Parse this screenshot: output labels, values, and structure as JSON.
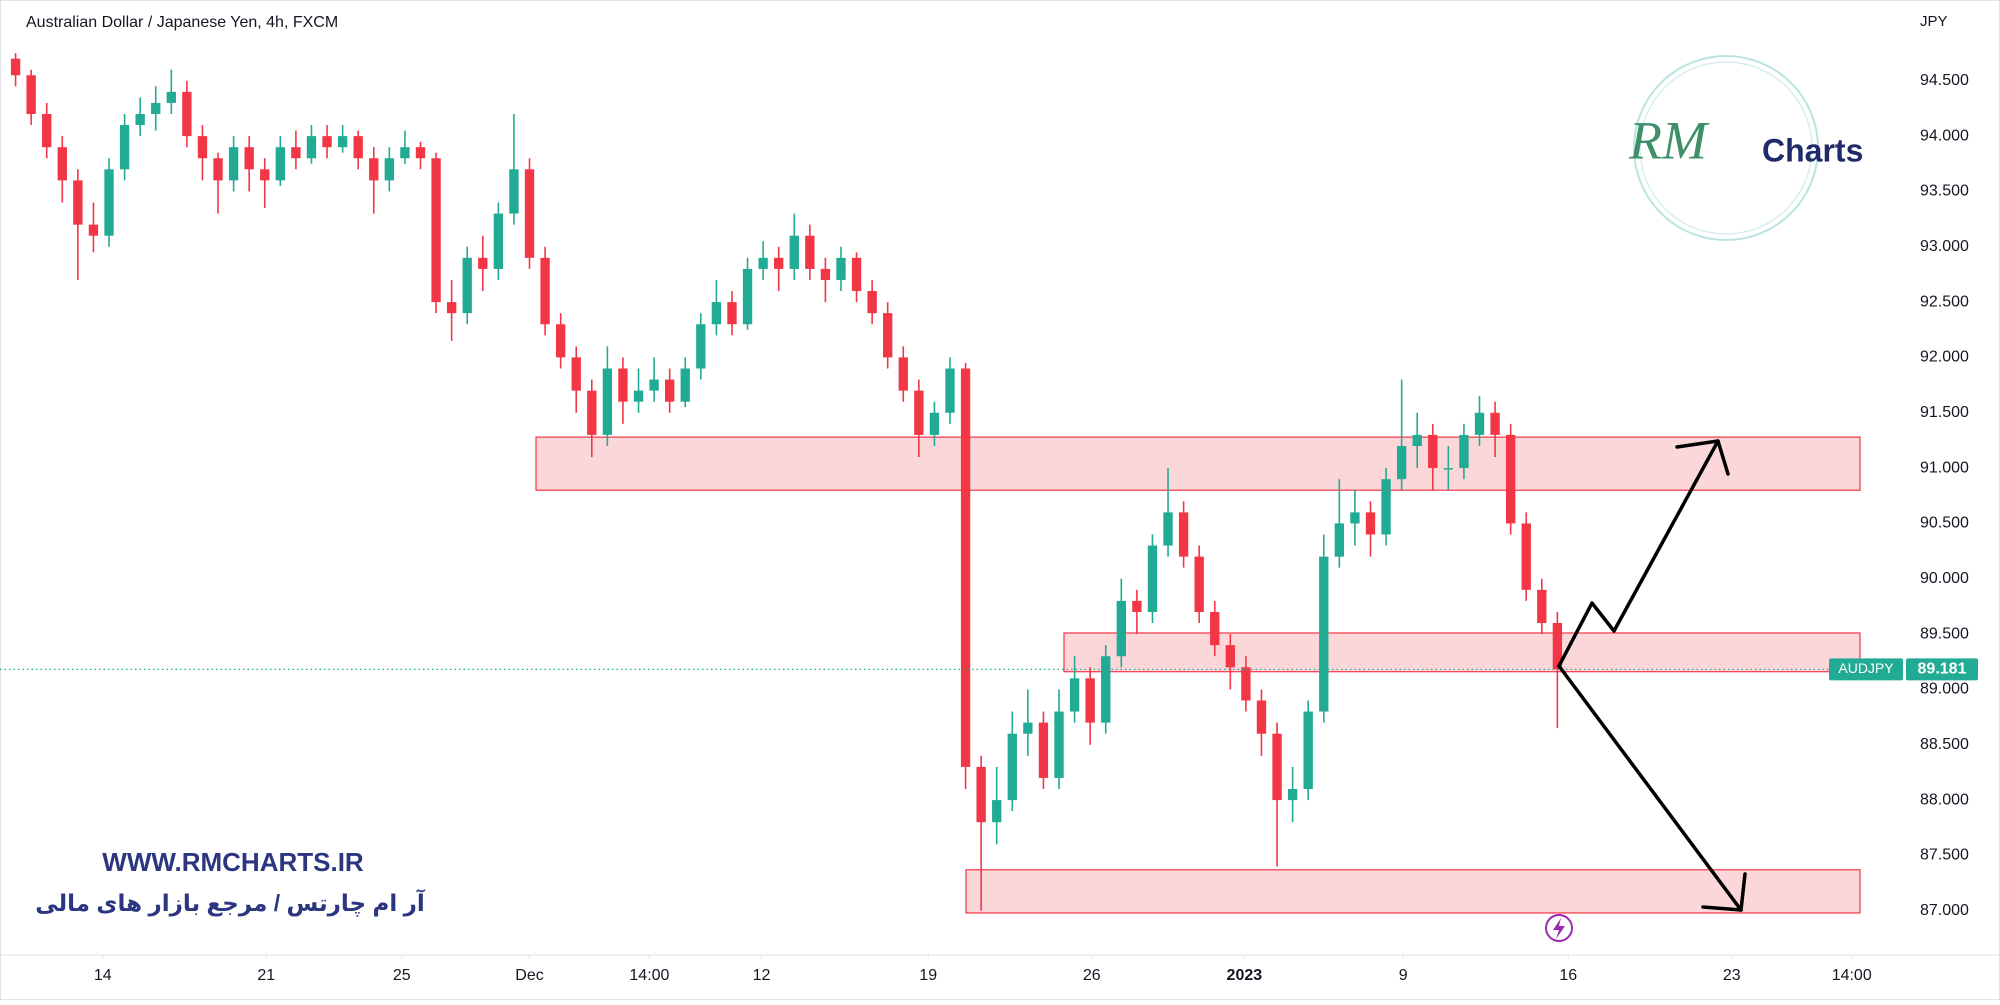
{
  "chart_data": {
    "type": "candlestick",
    "title": "Australian Dollar / Japanese Yen, 4h, FXCM",
    "y_axis_label": "JPY",
    "symbol": "AUDJPY",
    "last_price": 89.181,
    "colors": {
      "up": "#22ab94",
      "down": "#f23645"
    },
    "ohlc": [
      [
        94.7,
        94.75,
        94.45,
        94.55
      ],
      [
        94.55,
        94.6,
        94.1,
        94.2
      ],
      [
        94.2,
        94.3,
        93.8,
        93.9
      ],
      [
        93.9,
        94.0,
        93.4,
        93.6
      ],
      [
        93.6,
        93.7,
        92.7,
        93.2
      ],
      [
        93.2,
        93.4,
        92.95,
        93.1
      ],
      [
        93.1,
        93.8,
        93.0,
        93.7
      ],
      [
        93.7,
        94.2,
        93.6,
        94.1
      ],
      [
        94.1,
        94.35,
        94.0,
        94.2
      ],
      [
        94.2,
        94.45,
        94.05,
        94.3
      ],
      [
        94.3,
        94.6,
        94.2,
        94.4
      ],
      [
        94.4,
        94.5,
        93.9,
        94.0
      ],
      [
        94.0,
        94.1,
        93.6,
        93.8
      ],
      [
        93.8,
        93.85,
        93.3,
        93.6
      ],
      [
        93.6,
        94.0,
        93.5,
        93.9
      ],
      [
        93.9,
        94.0,
        93.5,
        93.7
      ],
      [
        93.7,
        93.8,
        93.35,
        93.6
      ],
      [
        93.6,
        94.0,
        93.55,
        93.9
      ],
      [
        93.9,
        94.05,
        93.7,
        93.8
      ],
      [
        93.8,
        94.1,
        93.75,
        94.0
      ],
      [
        94.0,
        94.1,
        93.8,
        93.9
      ],
      [
        93.9,
        94.1,
        93.85,
        94.0
      ],
      [
        94.0,
        94.05,
        93.7,
        93.8
      ],
      [
        93.8,
        93.9,
        93.3,
        93.6
      ],
      [
        93.6,
        93.9,
        93.5,
        93.8
      ],
      [
        93.8,
        94.05,
        93.75,
        93.9
      ],
      [
        93.9,
        93.95,
        93.7,
        93.8
      ],
      [
        93.8,
        93.85,
        92.4,
        92.5
      ],
      [
        92.5,
        92.7,
        92.15,
        92.4
      ],
      [
        92.4,
        93.0,
        92.3,
        92.9
      ],
      [
        92.9,
        93.1,
        92.6,
        92.8
      ],
      [
        92.8,
        93.4,
        92.7,
        93.3
      ],
      [
        93.3,
        94.2,
        93.2,
        93.7
      ],
      [
        93.7,
        93.8,
        92.8,
        92.9
      ],
      [
        92.9,
        93.0,
        92.2,
        92.3
      ],
      [
        92.3,
        92.4,
        91.9,
        92.0
      ],
      [
        92.0,
        92.1,
        91.5,
        91.7
      ],
      [
        91.7,
        91.8,
        91.1,
        91.3
      ],
      [
        91.3,
        92.1,
        91.2,
        91.9
      ],
      [
        91.9,
        92.0,
        91.4,
        91.6
      ],
      [
        91.6,
        91.9,
        91.5,
        91.7
      ],
      [
        91.7,
        92.0,
        91.6,
        91.8
      ],
      [
        91.8,
        91.9,
        91.5,
        91.6
      ],
      [
        91.6,
        92.0,
        91.55,
        91.9
      ],
      [
        91.9,
        92.4,
        91.8,
        92.3
      ],
      [
        92.3,
        92.7,
        92.2,
        92.5
      ],
      [
        92.5,
        92.6,
        92.2,
        92.3
      ],
      [
        92.3,
        92.9,
        92.25,
        92.8
      ],
      [
        92.8,
        93.05,
        92.7,
        92.9
      ],
      [
        92.9,
        93.0,
        92.6,
        92.8
      ],
      [
        92.8,
        93.3,
        92.7,
        93.1
      ],
      [
        93.1,
        93.2,
        92.7,
        92.8
      ],
      [
        92.8,
        92.9,
        92.5,
        92.7
      ],
      [
        92.7,
        93.0,
        92.6,
        92.9
      ],
      [
        92.9,
        92.95,
        92.5,
        92.6
      ],
      [
        92.6,
        92.7,
        92.3,
        92.4
      ],
      [
        92.4,
        92.5,
        91.9,
        92.0
      ],
      [
        92.0,
        92.1,
        91.6,
        91.7
      ],
      [
        91.7,
        91.8,
        91.1,
        91.3
      ],
      [
        91.3,
        91.6,
        91.2,
        91.5
      ],
      [
        91.5,
        92.0,
        91.4,
        91.9
      ],
      [
        91.9,
        91.95,
        88.1,
        88.3
      ],
      [
        88.3,
        88.4,
        87.0,
        87.8
      ],
      [
        87.8,
        88.3,
        87.6,
        88.0
      ],
      [
        88.0,
        88.8,
        87.9,
        88.6
      ],
      [
        88.6,
        89.0,
        88.4,
        88.7
      ],
      [
        88.7,
        88.8,
        88.1,
        88.2
      ],
      [
        88.2,
        89.0,
        88.1,
        88.8
      ],
      [
        88.8,
        89.3,
        88.7,
        89.1
      ],
      [
        89.1,
        89.2,
        88.5,
        88.7
      ],
      [
        88.7,
        89.4,
        88.6,
        89.3
      ],
      [
        89.3,
        90.0,
        89.2,
        89.8
      ],
      [
        89.8,
        89.9,
        89.5,
        89.7
      ],
      [
        89.7,
        90.4,
        89.6,
        90.3
      ],
      [
        90.3,
        91.0,
        90.2,
        90.6
      ],
      [
        90.6,
        90.7,
        90.1,
        90.2
      ],
      [
        90.2,
        90.3,
        89.6,
        89.7
      ],
      [
        89.7,
        89.8,
        89.3,
        89.4
      ],
      [
        89.4,
        89.5,
        89.0,
        89.2
      ],
      [
        89.2,
        89.3,
        88.8,
        88.9
      ],
      [
        88.9,
        89.0,
        88.4,
        88.6
      ],
      [
        88.6,
        88.7,
        87.4,
        88.0
      ],
      [
        88.0,
        88.3,
        87.8,
        88.1
      ],
      [
        88.1,
        88.9,
        88.0,
        88.8
      ],
      [
        88.8,
        90.4,
        88.7,
        90.2
      ],
      [
        90.2,
        90.9,
        90.1,
        90.5
      ],
      [
        90.5,
        90.8,
        90.3,
        90.6
      ],
      [
        90.6,
        90.7,
        90.2,
        90.4
      ],
      [
        90.4,
        91.0,
        90.3,
        90.9
      ],
      [
        90.9,
        91.8,
        90.8,
        91.2
      ],
      [
        91.2,
        91.5,
        91.0,
        91.3
      ],
      [
        91.3,
        91.4,
        90.8,
        91.0
      ],
      [
        91.0,
        91.2,
        90.8,
        91.0
      ],
      [
        91.0,
        91.4,
        90.9,
        91.3
      ],
      [
        91.3,
        91.65,
        91.2,
        91.5
      ],
      [
        91.5,
        91.6,
        91.1,
        91.3
      ],
      [
        91.3,
        91.4,
        90.4,
        90.5
      ],
      [
        90.5,
        90.6,
        89.8,
        89.9
      ],
      [
        89.9,
        90.0,
        89.5,
        89.6
      ],
      [
        89.6,
        89.7,
        88.65,
        89.181
      ]
    ],
    "xlim": [
      -1,
      121
    ],
    "xticks": [
      {
        "value": 5.6,
        "label": "14"
      },
      {
        "value": 16.1,
        "label": "21"
      },
      {
        "value": 24.8,
        "label": "25"
      },
      {
        "value": 33.0,
        "label": "Dec"
      },
      {
        "value": 40.7,
        "label": "14:00"
      },
      {
        "value": 47.9,
        "label": "12"
      },
      {
        "value": 58.6,
        "label": "19"
      },
      {
        "value": 69.1,
        "label": "26"
      },
      {
        "value": 78.9,
        "label": "2023"
      },
      {
        "value": 89.1,
        "label": "9"
      },
      {
        "value": 99.7,
        "label": "16"
      },
      {
        "value": 110.2,
        "label": "23"
      },
      {
        "value": 117.9,
        "label": "14:00"
      }
    ],
    "ylim": [
      86.6,
      95.23
    ],
    "yticks": [
      {
        "value": 87,
        "label": "87.000"
      },
      {
        "value": 87.5,
        "label": "87.500"
      },
      {
        "value": 88,
        "label": "88.000"
      },
      {
        "value": 88.5,
        "label": "88.500"
      },
      {
        "value": 89,
        "label": "89.000"
      },
      {
        "value": 89.5,
        "label": "89.500"
      },
      {
        "value": 90,
        "label": "90.000"
      },
      {
        "value": 90.5,
        "label": "90.500"
      },
      {
        "value": 91,
        "label": "91.000"
      },
      {
        "value": 91.5,
        "label": "91.500"
      },
      {
        "value": 92,
        "label": "92.000"
      },
      {
        "value": 92.5,
        "label": "92.500"
      },
      {
        "value": 93,
        "label": "93.000"
      },
      {
        "value": 93.5,
        "label": "93.500"
      },
      {
        "value": 94,
        "label": "94.000"
      },
      {
        "value": 94.5,
        "label": "94.500"
      }
    ],
    "zones": [
      {
        "low": 90.8,
        "high": 91.28
      },
      {
        "low": 89.16,
        "high": 89.51
      },
      {
        "low": 86.98,
        "high": 87.37
      }
    ]
  },
  "logo": {
    "mark": "RM",
    "name": "Charts"
  },
  "watermark": {
    "url": "WWW.RMCHARTS.IR",
    "tagline": "آر ام چارتس / مرجع بازار های مالی"
  }
}
